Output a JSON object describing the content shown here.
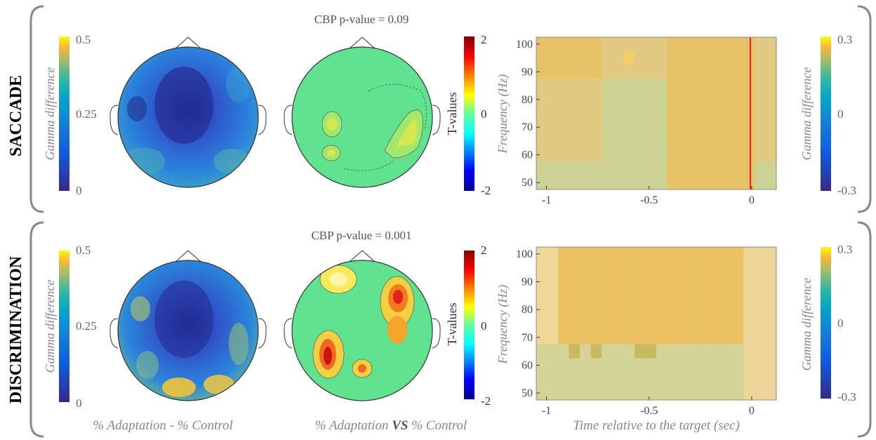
{
  "rows": [
    {
      "label": "SACCADE",
      "cbp_text": "CBP p-value  = 0.09",
      "bracket": "left"
    },
    {
      "label": "DISCRIMINATION",
      "cbp_text": "CBP p-value  = 0.001",
      "bracket": "right"
    }
  ],
  "labels": {
    "topo_colorbar_ylabel": "Gamma difference",
    "tvalue_colorbar_ylabel": "T-values",
    "tf_ylabel": "Frequency (Hz)",
    "tf_xlabel": "Time relative to the target (sec)",
    "tf_colorbar_ylabel": "Gamma difference",
    "topo_caption": "% Adaptation - % Control",
    "tvalue_caption_pre": "% Adaptation ",
    "tvalue_caption_bold": "VS",
    "tvalue_caption_post": " % Control"
  },
  "colors": {
    "bracket": "#888888",
    "topo_background": "#2f6fd6",
    "tmap_background": "#5fe38e",
    "tf_background": "#e3cc86",
    "tf_marker_line": "#e0262c"
  },
  "chart_data": [
    {
      "type": "heatmap",
      "name": "saccade-topography",
      "colorbar": {
        "min_label": "0",
        "mid_label": "0.25",
        "max_label": "0.5",
        "ticks": [
          0,
          0.25,
          0.5
        ],
        "colormap": "parula"
      }
    },
    {
      "type": "heatmap",
      "name": "saccade-tmap",
      "colorbar": {
        "min_label": "-2",
        "mid_label": "0",
        "max_label": "2",
        "ticks": [
          -2,
          0,
          2
        ],
        "colormap": "jet"
      }
    },
    {
      "type": "heatmap",
      "name": "saccade-time-frequency",
      "x_ticks": [
        "-1",
        "-0.5",
        "0"
      ],
      "x_tick_values": [
        -1,
        -0.5,
        0
      ],
      "y_ticks": [
        "50",
        "60",
        "70",
        "80",
        "90",
        "100"
      ],
      "y_tick_values": [
        50,
        60,
        70,
        80,
        90,
        100
      ],
      "xlim": [
        -1.05,
        0.12
      ],
      "ylim": [
        47.5,
        102.5
      ],
      "marker_x": 0,
      "colorbar": {
        "min_label": "-0.3",
        "mid_label": "0",
        "max_label": "0.3",
        "ticks": [
          -0.3,
          0,
          0.3
        ],
        "colormap": "parula"
      }
    },
    {
      "type": "heatmap",
      "name": "discrimination-topography",
      "colorbar": {
        "min_label": "0",
        "mid_label": "0.25",
        "max_label": "0.5",
        "ticks": [
          0,
          0.25,
          0.5
        ],
        "colormap": "parula"
      }
    },
    {
      "type": "heatmap",
      "name": "discrimination-tmap",
      "colorbar": {
        "min_label": "-2",
        "mid_label": "0",
        "max_label": "2",
        "ticks": [
          -2,
          0,
          2
        ],
        "colormap": "jet"
      }
    },
    {
      "type": "heatmap",
      "name": "discrimination-time-frequency",
      "x_ticks": [
        "-1",
        "-0.5",
        "0"
      ],
      "x_tick_values": [
        -1,
        -0.5,
        0
      ],
      "y_ticks": [
        "50",
        "60",
        "70",
        "80",
        "90",
        "100"
      ],
      "y_tick_values": [
        50,
        60,
        70,
        80,
        90,
        100
      ],
      "xlim": [
        -1.05,
        0.12
      ],
      "ylim": [
        47.5,
        102.5
      ],
      "colorbar": {
        "min_label": "-0.3",
        "mid_label": "0",
        "max_label": "0.3",
        "ticks": [
          -0.3,
          0,
          0.3
        ],
        "colormap": "parula"
      }
    }
  ]
}
